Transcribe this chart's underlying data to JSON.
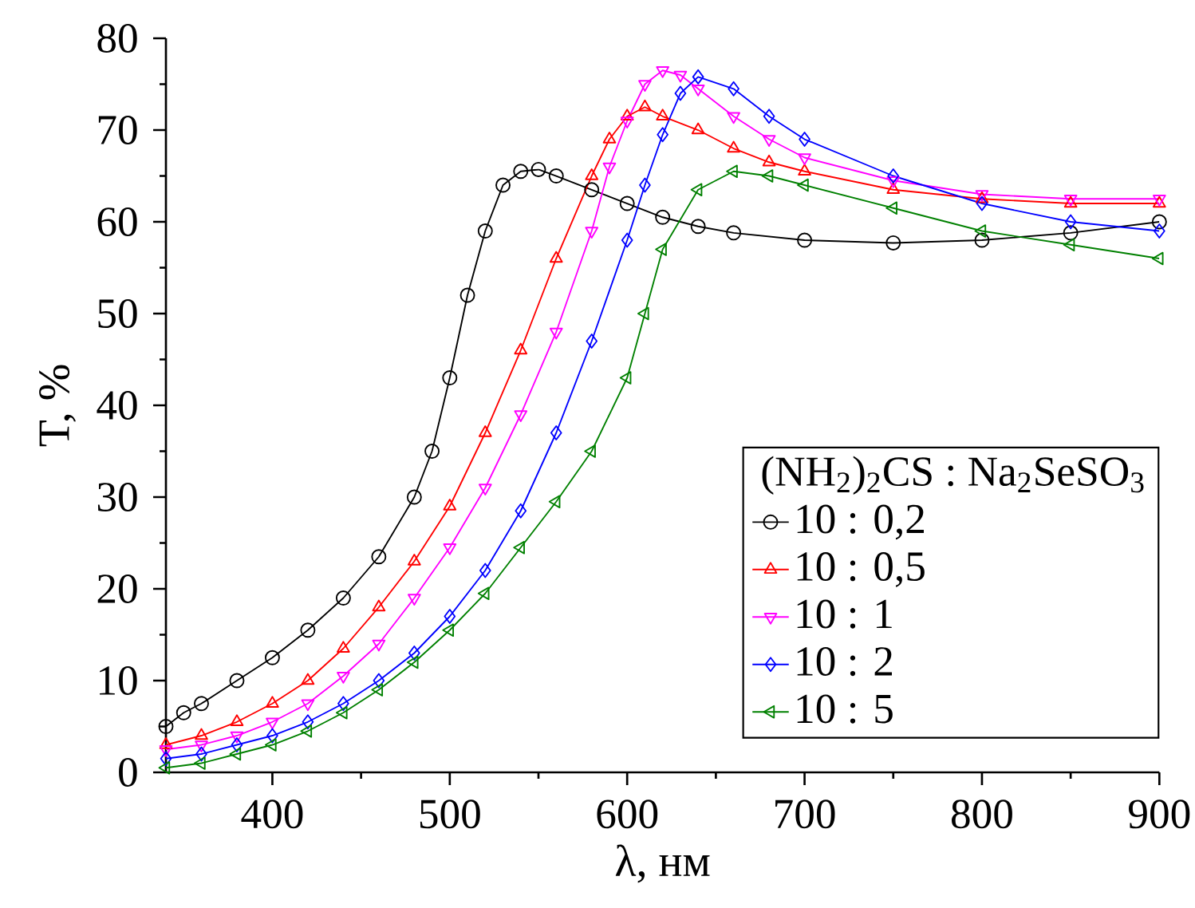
{
  "chart_data": {
    "type": "line",
    "xlabel": "λ, нм",
    "ylabel": "T, %",
    "legend_title": "(NH$_{2}$)$_{2}$CS : Na$_{2}$SeSO$_{3}$",
    "legend": "right",
    "grid": false,
    "xlim": [
      340,
      900
    ],
    "xticks": [
      400,
      500,
      600,
      700,
      800,
      900
    ],
    "ylim": [
      0,
      80
    ],
    "yticks": [
      0,
      10,
      20,
      30,
      40,
      50,
      60,
      70,
      80
    ],
    "series": [
      {
        "name": "10 : 0,2",
        "color": "#000000",
        "marker": "circle",
        "x": [
          340,
          350,
          360,
          380,
          400,
          420,
          440,
          460,
          480,
          490,
          500,
          510,
          520,
          530,
          540,
          550,
          560,
          580,
          600,
          620,
          640,
          660,
          700,
          750,
          800,
          850,
          900
        ],
        "values": [
          5,
          6.5,
          7.5,
          10,
          12.5,
          15.5,
          19,
          23.5,
          30,
          35,
          43,
          52,
          59,
          64,
          65.5,
          65.7,
          65,
          63.5,
          62,
          60.5,
          59.5,
          58.8,
          58,
          57.7,
          58,
          58.8,
          60
        ]
      },
      {
        "name": "10 : 0,5",
        "color": "#ff0000",
        "marker": "triangle",
        "x": [
          340,
          360,
          380,
          400,
          420,
          440,
          460,
          480,
          500,
          520,
          540,
          560,
          580,
          590,
          600,
          610,
          620,
          640,
          660,
          680,
          700,
          750,
          800,
          850,
          900
        ],
        "values": [
          3,
          4,
          5.5,
          7.5,
          10,
          13.5,
          18,
          23,
          29,
          37,
          46,
          56,
          65,
          69,
          71.5,
          72.5,
          71.5,
          70,
          68,
          66.5,
          65.5,
          63.5,
          62.5,
          62,
          62
        ]
      },
      {
        "name": "10 : 1",
        "color": "#ff00ff",
        "marker": "triangle-down",
        "x": [
          340,
          360,
          380,
          400,
          420,
          440,
          460,
          480,
          500,
          520,
          540,
          560,
          580,
          590,
          600,
          610,
          620,
          630,
          640,
          660,
          680,
          700,
          750,
          800,
          850,
          900
        ],
        "values": [
          2.5,
          3,
          4,
          5.5,
          7.5,
          10.5,
          14,
          19,
          24.5,
          31,
          39,
          48,
          59,
          66,
          71,
          75,
          76.5,
          76,
          74.5,
          71.5,
          69,
          67,
          64.5,
          63,
          62.5,
          62.5
        ]
      },
      {
        "name": "10 : 2",
        "color": "#0000ff",
        "marker": "diamond",
        "x": [
          340,
          360,
          380,
          400,
          420,
          440,
          460,
          480,
          500,
          520,
          540,
          560,
          580,
          600,
          610,
          620,
          630,
          640,
          660,
          680,
          700,
          750,
          800,
          850,
          900
        ],
        "values": [
          1.5,
          2,
          3,
          4,
          5.5,
          7.5,
          10,
          13,
          17,
          22,
          28.5,
          37,
          47,
          58,
          64,
          69.5,
          74,
          75.8,
          74.5,
          71.5,
          69,
          65,
          62,
          60,
          59
        ]
      },
      {
        "name": "10 : 5",
        "color": "#008000",
        "marker": "triangle-left",
        "x": [
          340,
          360,
          380,
          400,
          420,
          440,
          460,
          480,
          500,
          520,
          540,
          560,
          580,
          600,
          610,
          620,
          640,
          660,
          680,
          700,
          750,
          800,
          850,
          900
        ],
        "values": [
          0.5,
          1,
          2,
          3,
          4.5,
          6.5,
          9,
          12,
          15.5,
          19.5,
          24.5,
          29.5,
          35,
          43,
          50,
          57,
          63.5,
          65.5,
          65,
          64,
          61.5,
          59,
          57.5,
          56
        ]
      }
    ]
  }
}
